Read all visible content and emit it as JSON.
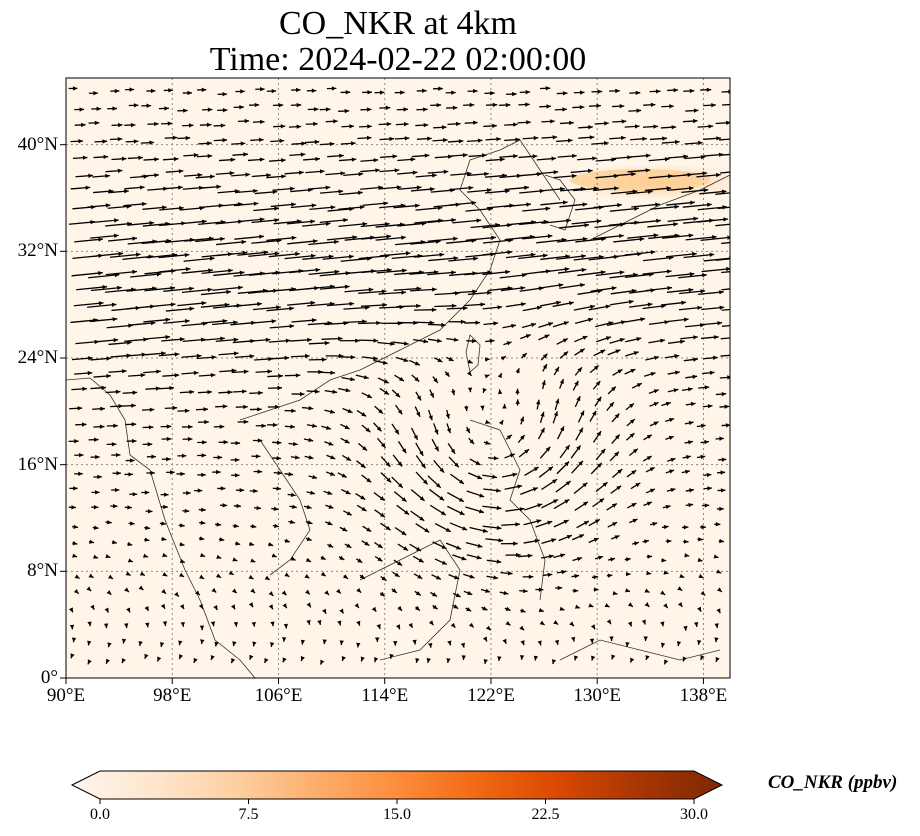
{
  "title": {
    "line1": "CO_NKR at 4km",
    "line2": "Time: 2024-02-22 02:00:00"
  },
  "map": {
    "lon_range": [
      90,
      140
    ],
    "lat_range": [
      0,
      45
    ],
    "lat_ticks": [
      {
        "value": 0,
        "label": "0°"
      },
      {
        "value": 8,
        "label": "8°N"
      },
      {
        "value": 16,
        "label": "16°N"
      },
      {
        "value": 24,
        "label": "24°N"
      },
      {
        "value": 32,
        "label": "32°N"
      },
      {
        "value": 40,
        "label": "40°N"
      }
    ],
    "lon_ticks": [
      {
        "value": 90,
        "label": "90°E"
      },
      {
        "value": 98,
        "label": "98°E"
      },
      {
        "value": 106,
        "label": "106°E"
      },
      {
        "value": 114,
        "label": "114°E"
      },
      {
        "value": 122,
        "label": "122°E"
      },
      {
        "value": 130,
        "label": "130°E"
      },
      {
        "value": 138,
        "label": "138°E"
      }
    ],
    "gridlines": true,
    "background_color": "#fff5e8",
    "plume_color": "#fdcf96",
    "vector_color": "#000000"
  },
  "colorbar": {
    "title": "CO_NKR (ppbv)",
    "min": 0,
    "max": 30,
    "ticks": [
      "0.0",
      "7.5",
      "15.0",
      "22.5",
      "30.0"
    ],
    "colormap": [
      "#fff5eb",
      "#fee6ce",
      "#fdd0a2",
      "#fdae6b",
      "#fd8d3c",
      "#f16913",
      "#d94801",
      "#a63603",
      "#7f2704"
    ],
    "extend": "both"
  }
}
